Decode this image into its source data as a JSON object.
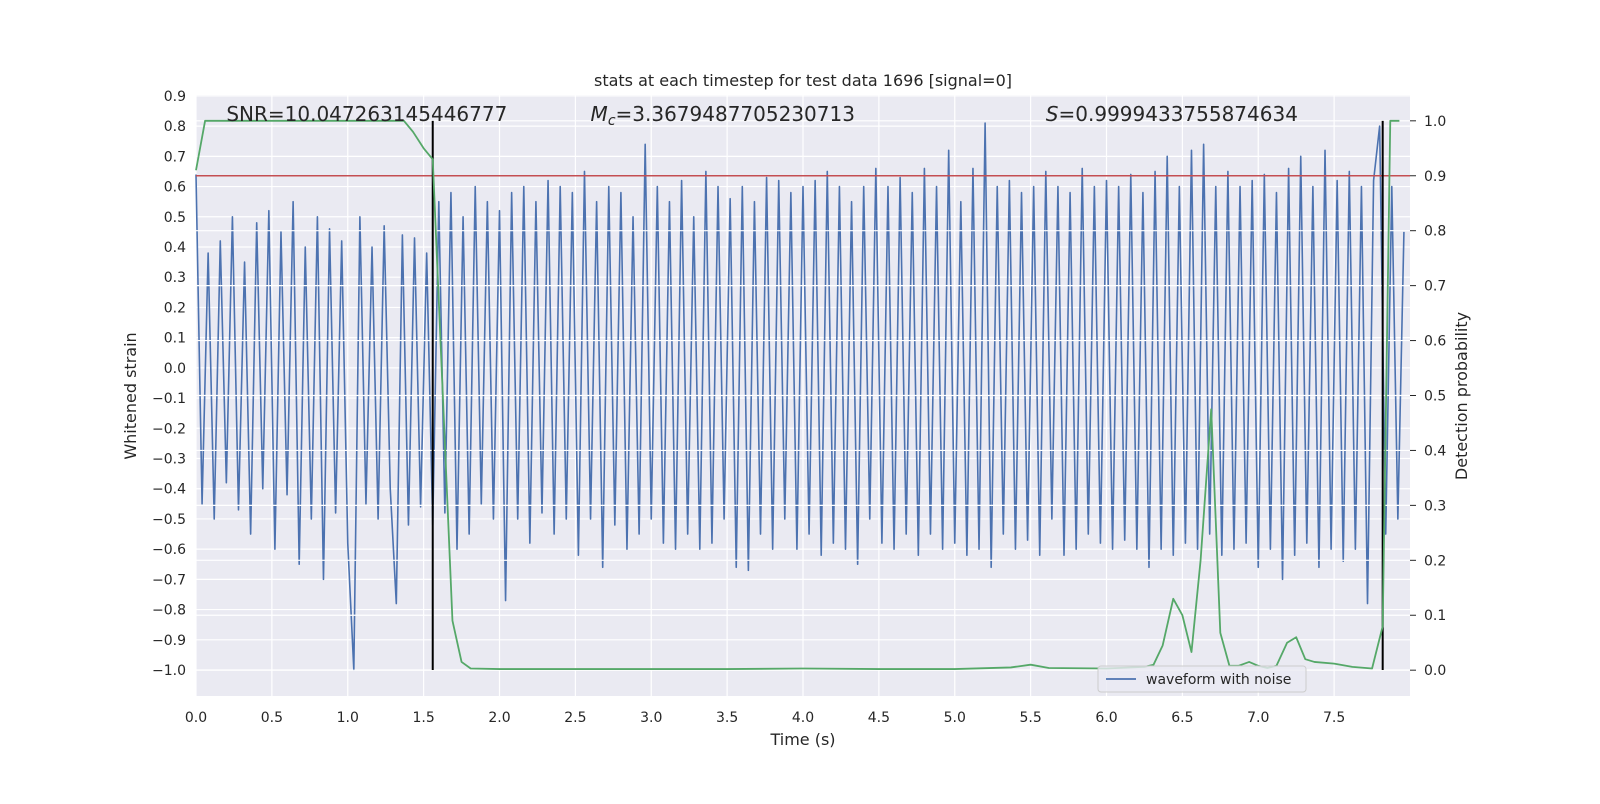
{
  "chart_data": {
    "type": "line",
    "title": "stats at each timestep for test data 1696 [signal=0]",
    "xlabel": "Time (s)",
    "ylabel": "Whitened strain",
    "y2label": "Detection probability",
    "background": "#eaeaf2",
    "grid": true,
    "legend": "lower right",
    "xlim": [
      0,
      8.0
    ],
    "ylim": [
      -1.086,
      0.903
    ],
    "y2lim": [
      -0.047,
      1.047
    ],
    "xticks": [
      {
        "value": 0,
        "label": "0.0"
      },
      0.5,
      {
        "value": 1,
        "label": "1.0"
      },
      1.5,
      {
        "value": 2,
        "label": "2.0"
      },
      2.5,
      {
        "value": 3,
        "label": "3.0"
      },
      3.5,
      {
        "value": 4,
        "label": "4.0"
      },
      4.5,
      {
        "value": 5,
        "label": "5.0"
      },
      5.5,
      {
        "value": 6,
        "label": "6.0"
      },
      6.5,
      {
        "value": 7,
        "label": "7.0"
      },
      7.5
    ],
    "yticks": [
      {
        "value": -1,
        "label": "−1.0"
      },
      {
        "value": -0.9,
        "label": "−0.9"
      },
      {
        "value": -0.8,
        "label": "−0.8"
      },
      {
        "value": -0.7,
        "label": "−0.7"
      },
      {
        "value": -0.6,
        "label": "−0.6"
      },
      {
        "value": -0.5,
        "label": "−0.5"
      },
      {
        "value": -0.4,
        "label": "−0.4"
      },
      {
        "value": -0.3,
        "label": "−0.3"
      },
      {
        "value": -0.2,
        "label": "−0.2"
      },
      {
        "value": -0.1,
        "label": "−0.1"
      },
      {
        "value": 0,
        "label": "0.0"
      },
      0.1,
      0.2,
      0.3,
      0.4,
      0.5,
      0.6,
      0.7,
      0.8,
      0.9
    ],
    "y2ticks": [
      {
        "value": 0,
        "label": "0.0"
      },
      0.1,
      0.2,
      0.3,
      0.4,
      0.5,
      0.6,
      0.7,
      0.8,
      0.9,
      {
        "value": 1,
        "label": "1.0"
      }
    ],
    "annotations": [
      {
        "text": "SNR=10.047263145446777",
        "x": 0.2
      },
      {
        "italic": "M",
        "sub": "c",
        "text": "=3.3679487705230713",
        "x": 2.6
      },
      {
        "italic": "S",
        "text": "=0.9999433755874634",
        "x": 5.6
      }
    ],
    "hlines": [
      {
        "value": 0.9,
        "axis": "y2",
        "color": "#c44e52"
      }
    ],
    "vlines": [
      {
        "value": 1.56,
        "color": "#000000"
      },
      {
        "value": 7.82,
        "color": "#000000"
      }
    ],
    "series": [
      {
        "name": "waveform with noise",
        "color": "#4c72b0",
        "axis": "y",
        "x": [
          0,
          0.04,
          0.08,
          0.12,
          0.16,
          0.2,
          0.24,
          0.28,
          0.32,
          0.36,
          0.4,
          0.44,
          0.48,
          0.52,
          0.56,
          0.6,
          0.64,
          0.68,
          0.72,
          0.76,
          0.8,
          0.84,
          0.88,
          0.92,
          0.96,
          1,
          1.04,
          1.08,
          1.12,
          1.16,
          1.2,
          1.24,
          1.28,
          1.32,
          1.36,
          1.4,
          1.44,
          1.48,
          1.52,
          1.56,
          1.6,
          1.64,
          1.68,
          1.72,
          1.76,
          1.8,
          1.84,
          1.88,
          1.92,
          1.96,
          2,
          2.04,
          2.08,
          2.12,
          2.16,
          2.2,
          2.24,
          2.28,
          2.32,
          2.36,
          2.4,
          2.44,
          2.48,
          2.52,
          2.56,
          2.6,
          2.64,
          2.68,
          2.72,
          2.76,
          2.8,
          2.84,
          2.88,
          2.92,
          2.96,
          3,
          3.04,
          3.08,
          3.12,
          3.16,
          3.2,
          3.24,
          3.28,
          3.32,
          3.36,
          3.4,
          3.44,
          3.48,
          3.52,
          3.56,
          3.6,
          3.64,
          3.68,
          3.72,
          3.76,
          3.8,
          3.84,
          3.88,
          3.92,
          3.96,
          4,
          4.04,
          4.08,
          4.12,
          4.16,
          4.2,
          4.24,
          4.28,
          4.32,
          4.36,
          4.4,
          4.44,
          4.48,
          4.52,
          4.56,
          4.6,
          4.64,
          4.68,
          4.72,
          4.76,
          4.8,
          4.84,
          4.88,
          4.92,
          4.96,
          5,
          5.04,
          5.08,
          5.12,
          5.16,
          5.2,
          5.24,
          5.28,
          5.32,
          5.36,
          5.4,
          5.44,
          5.48,
          5.52,
          5.56,
          5.6,
          5.64,
          5.68,
          5.72,
          5.76,
          5.8,
          5.84,
          5.88,
          5.92,
          5.96,
          6,
          6.04,
          6.08,
          6.12,
          6.16,
          6.2,
          6.24,
          6.28,
          6.32,
          6.36,
          6.4,
          6.44,
          6.48,
          6.52,
          6.56,
          6.6,
          6.64,
          6.68,
          6.72,
          6.76,
          6.8,
          6.84,
          6.88,
          6.92,
          6.96,
          7,
          7.04,
          7.08,
          7.12,
          7.16,
          7.2,
          7.24,
          7.28,
          7.32,
          7.36,
          7.4,
          7.44,
          7.48,
          7.52,
          7.56,
          7.6,
          7.64,
          7.68,
          7.72,
          7.76,
          7.8,
          7.84,
          7.88,
          7.92,
          7.96
        ],
        "values": [
          0.64,
          -0.45,
          0.38,
          -0.5,
          0.42,
          -0.38,
          0.5,
          -0.47,
          0.35,
          -0.55,
          0.48,
          -0.4,
          0.52,
          -0.6,
          0.45,
          -0.42,
          0.55,
          -0.65,
          0.4,
          -0.5,
          0.5,
          -0.7,
          0.46,
          -0.48,
          0.42,
          -0.58,
          -1.0,
          0.5,
          -0.45,
          0.4,
          -0.5,
          0.47,
          -0.4,
          -0.78,
          0.44,
          -0.52,
          0.43,
          -0.46,
          0.38,
          -0.52,
          0.55,
          -0.48,
          0.58,
          -0.6,
          0.5,
          -0.55,
          0.6,
          -0.45,
          0.55,
          -0.5,
          0.52,
          -0.77,
          0.58,
          -0.5,
          0.6,
          -0.58,
          0.55,
          -0.48,
          0.62,
          -0.55,
          0.6,
          -0.5,
          0.58,
          -0.62,
          0.65,
          -0.5,
          0.55,
          -0.66,
          0.6,
          -0.52,
          0.58,
          -0.6,
          0.5,
          -0.55,
          0.74,
          -0.5,
          0.6,
          -0.58,
          0.55,
          -0.6,
          0.62,
          -0.55,
          0.5,
          -0.6,
          0.65,
          -0.58,
          0.6,
          -0.5,
          0.56,
          -0.66,
          0.6,
          -0.67,
          0.55,
          -0.55,
          0.63,
          -0.6,
          0.62,
          -0.5,
          0.58,
          -0.6,
          0.6,
          -0.55,
          0.62,
          -0.62,
          0.65,
          -0.58,
          0.6,
          -0.6,
          0.55,
          -0.65,
          0.6,
          -0.5,
          0.66,
          -0.58,
          0.6,
          -0.6,
          0.63,
          -0.55,
          0.58,
          -0.62,
          0.66,
          -0.55,
          0.6,
          -0.6,
          0.72,
          -0.58,
          0.55,
          -0.62,
          0.66,
          -0.6,
          0.81,
          -0.66,
          0.6,
          -0.55,
          0.62,
          -0.6,
          0.58,
          -0.57,
          0.6,
          -0.62,
          0.65,
          -0.5,
          0.6,
          -0.62,
          0.58,
          -0.6,
          0.66,
          -0.55,
          0.6,
          -0.58,
          0.62,
          -0.6,
          0.6,
          -0.57,
          0.64,
          -0.6,
          0.58,
          -0.66,
          0.65,
          -0.6,
          0.7,
          -0.62,
          0.6,
          -0.58,
          0.72,
          -0.6,
          0.74,
          -0.55,
          0.6,
          -0.62,
          0.65,
          -0.6,
          0.6,
          -0.58,
          0.62,
          -0.66,
          0.64,
          -0.6,
          0.58,
          -0.7,
          0.66,
          -0.62,
          0.7,
          -0.58,
          0.6,
          -0.66,
          0.72,
          -0.6,
          0.62,
          -0.64,
          0.65,
          -0.6,
          0.6,
          -0.78,
          0.62,
          0.8,
          -0.55,
          0.6,
          -0.5,
          0.45
        ]
      },
      {
        "color": "#55a868",
        "axis": "y2",
        "x": [
          0,
          0.06,
          0.2,
          0.4,
          0.6,
          0.8,
          1.0,
          1.2,
          1.37,
          1.43,
          1.5,
          1.56,
          1.69,
          1.75,
          1.81,
          2.0,
          2.5,
          3.0,
          3.5,
          4.0,
          4.5,
          5.0,
          5.37,
          5.5,
          5.62,
          6.0,
          6.25,
          6.31,
          6.37,
          6.44,
          6.5,
          6.56,
          6.62,
          6.69,
          6.75,
          6.81,
          6.87,
          6.94,
          7.0,
          7.06,
          7.12,
          7.19,
          7.25,
          7.31,
          7.37,
          7.5,
          7.62,
          7.75,
          7.82,
          7.87,
          7.93
        ],
        "values": [
          0.91,
          1.0,
          1.0,
          1.0,
          1.0,
          1.0,
          1.0,
          1.0,
          1.0,
          0.98,
          0.95,
          0.93,
          0.09,
          0.015,
          0.003,
          0.002,
          0.002,
          0.002,
          0.002,
          0.003,
          0.002,
          0.002,
          0.005,
          0.01,
          0.004,
          0.003,
          0.006,
          0.01,
          0.045,
          0.13,
          0.1,
          0.033,
          0.2,
          0.475,
          0.068,
          0.008,
          0.008,
          0.015,
          0.008,
          0.004,
          0.008,
          0.05,
          0.06,
          0.02,
          0.015,
          0.012,
          0.006,
          0.003,
          0.08,
          1.0,
          1.0
        ]
      }
    ]
  }
}
